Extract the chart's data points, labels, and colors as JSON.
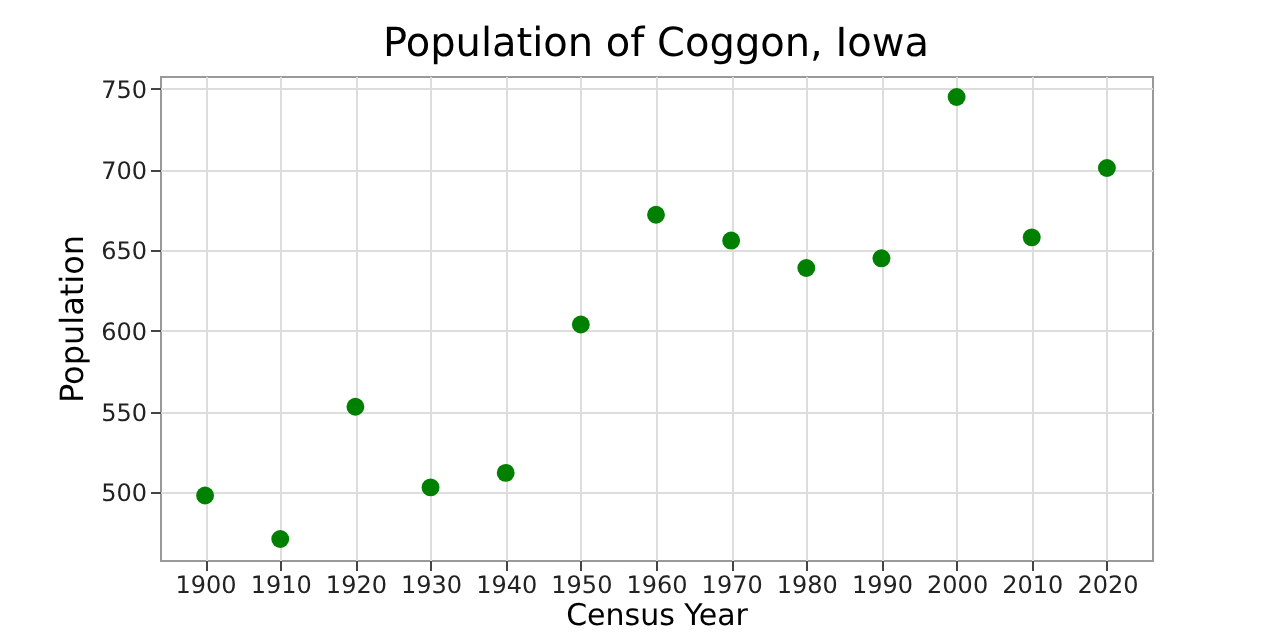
{
  "chart_data": {
    "type": "scatter",
    "title": "Population of Coggon, Iowa",
    "xlabel": "Census Year",
    "ylabel": "Population",
    "x": [
      1900,
      1910,
      1920,
      1930,
      1940,
      1950,
      1960,
      1970,
      1980,
      1990,
      2000,
      2010,
      2020
    ],
    "series": [
      {
        "color": "#008000",
        "values": [
          498,
          471,
          553,
          503,
          512,
          604,
          672,
          656,
          639,
          645,
          745,
          658,
          701
        ]
      }
    ],
    "xlim": [
      1894,
      2026
    ],
    "xticks": [
      1900,
      1910,
      1920,
      1930,
      1940,
      1950,
      1960,
      1970,
      1980,
      1990,
      2000,
      2010,
      2020
    ],
    "ylim": [
      458,
      758
    ],
    "yticks": [
      500,
      550,
      600,
      650,
      700,
      750
    ],
    "grid": true,
    "marker": "circle"
  }
}
